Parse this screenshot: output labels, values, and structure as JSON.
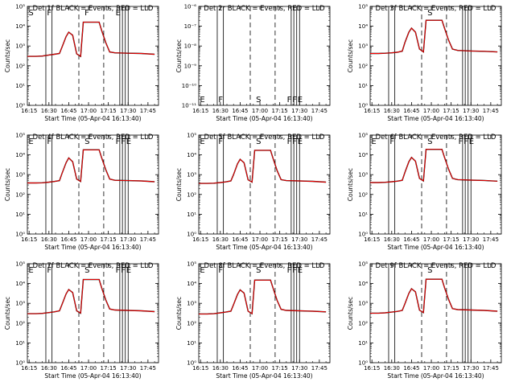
{
  "colors": {
    "events": "#000000",
    "lld": "#ff0000",
    "background": "#ffffff"
  },
  "chart_data": [
    {
      "type": "line",
      "title": "Det 1f BLACK = Events, RED = LLD",
      "xlabel": "Start Time (05-Apr-04 16:13:40)",
      "ylabel": "Counts/sec",
      "x_tick_labels": [
        "16:15",
        "16:30",
        "16:45",
        "17:00",
        "17:15",
        "17:30",
        "17:45"
      ],
      "y_tick_labels": [
        "10⁰",
        "10¹",
        "10²",
        "10³",
        "10⁴",
        "10⁵"
      ],
      "yscale": "log",
      "xlim": [
        "16:13:40",
        "17:53:00"
      ],
      "ylim": [
        1,
        100000
      ],
      "marker_labels": [
        "S",
        "F",
        "F",
        "E"
      ],
      "has_curves": true,
      "series": [
        {
          "x": [
            "16:13:40",
            "16:20:00",
            "16:25:00",
            "16:30:00",
            "16:34:00",
            "16:38:00",
            "16:40:00",
            "16:43:00",
            "16:45:00",
            "16:48:00",
            "16:51:00",
            "16:54:00",
            "16:56:00",
            "17:08:00",
            "17:10:00",
            "17:13:00",
            "17:16:00",
            "17:20:00",
            "17:30:00",
            "17:40:00",
            "17:50:00"
          ],
          "values": [
            300,
            300,
            310,
            350,
            380,
            420,
            900,
            3000,
            5000,
            3500,
            400,
            300,
            16000,
            16000,
            6000,
            1500,
            500,
            450,
            430,
            420,
            380
          ]
        }
      ]
    },
    {
      "type": "line",
      "title": "Det 2r BLACK = Events, RED = LLD",
      "xlabel": "Start Time (05-Apr-04 16:13:40)",
      "ylabel": "Counts/sec",
      "x_tick_labels": [
        "16:15",
        "16:30",
        "16:45",
        "17:00",
        "17:15",
        "17:30",
        "17:45"
      ],
      "y_tick_labels": [
        "10⁻¹¹",
        "10⁻¹⁰",
        "10⁻⁹",
        "10⁻⁸",
        "10⁻⁷",
        "10⁻⁶"
      ],
      "yscale": "log",
      "xlim": [
        "16:13:40",
        "17:53:00"
      ],
      "ylim": [
        1e-11,
        1e-06
      ],
      "marker_labels": [
        "E",
        "F",
        "S",
        "F",
        "F",
        "E"
      ],
      "has_curves": false
    },
    {
      "type": "line",
      "title": "Det 3f BLACK = Events, RED = LLD",
      "xlabel": "Start Time (05-Apr-04 16:13:40)",
      "ylabel": "Counts/sec",
      "x_tick_labels": [
        "16:15",
        "16:30",
        "16:45",
        "17:00",
        "17:15",
        "17:30",
        "17:45"
      ],
      "y_tick_labels": [
        "10⁰",
        "10¹",
        "10²",
        "10³",
        "10⁴",
        "10⁵"
      ],
      "yscale": "log",
      "xlim": [
        "16:13:40",
        "17:53:00"
      ],
      "ylim": [
        1,
        100000
      ],
      "marker_labels": [
        "S"
      ],
      "has_curves": true,
      "series": [
        {
          "x": [
            "16:13:40",
            "16:20:00",
            "16:25:00",
            "16:30:00",
            "16:34:00",
            "16:38:00",
            "16:40:00",
            "16:43:00",
            "16:45:00",
            "16:48:00",
            "16:51:00",
            "16:54:00",
            "16:56:00",
            "17:08:00",
            "17:10:00",
            "17:13:00",
            "17:16:00",
            "17:20:00",
            "17:30:00",
            "17:40:00",
            "17:50:00"
          ],
          "values": [
            420,
            420,
            430,
            450,
            480,
            550,
            1500,
            5000,
            8000,
            5000,
            700,
            500,
            20000,
            20000,
            8000,
            2000,
            700,
            600,
            560,
            540,
            500
          ]
        }
      ]
    },
    {
      "type": "line",
      "title": "Det 4f BLACK = Events, RED = LLD",
      "xlabel": "Start Time (05-Apr-04 16:13:40)",
      "ylabel": "Counts/sec",
      "x_tick_labels": [
        "16:15",
        "16:30",
        "16:45",
        "17:00",
        "17:15",
        "17:30",
        "17:45"
      ],
      "y_tick_labels": [
        "10⁰",
        "10¹",
        "10²",
        "10³",
        "10⁴",
        "10⁵"
      ],
      "yscale": "log",
      "xlim": [
        "16:13:40",
        "17:53:00"
      ],
      "ylim": [
        1,
        100000
      ],
      "marker_labels": [
        "E",
        "F",
        "S",
        "F",
        "F",
        "E"
      ],
      "has_curves": true,
      "series": [
        {
          "x": [
            "16:13:40",
            "16:20:00",
            "16:25:00",
            "16:30:00",
            "16:34:00",
            "16:38:00",
            "16:40:00",
            "16:43:00",
            "16:45:00",
            "16:48:00",
            "16:51:00",
            "16:54:00",
            "16:56:00",
            "17:08:00",
            "17:10:00",
            "17:13:00",
            "17:16:00",
            "17:20:00",
            "17:30:00",
            "17:40:00",
            "17:50:00"
          ],
          "values": [
            380,
            380,
            390,
            420,
            450,
            500,
            1200,
            4000,
            7000,
            4500,
            600,
            450,
            18000,
            18000,
            7000,
            1800,
            600,
            520,
            500,
            480,
            440
          ]
        }
      ]
    },
    {
      "type": "line",
      "title": "Det 5f BLACK = Events, RED = LLD",
      "xlabel": "Start Time (05-Apr-04 16:13:40)",
      "ylabel": "Counts/sec",
      "x_tick_labels": [
        "16:15",
        "16:30",
        "16:45",
        "17:00",
        "17:15",
        "17:30",
        "17:45"
      ],
      "y_tick_labels": [
        "10⁰",
        "10¹",
        "10²",
        "10³",
        "10⁴",
        "10⁵"
      ],
      "yscale": "log",
      "xlim": [
        "16:13:40",
        "17:53:00"
      ],
      "ylim": [
        1,
        100000
      ],
      "marker_labels": [
        "E",
        "F",
        "S",
        "F",
        "F",
        "E"
      ],
      "has_curves": true,
      "series": [
        {
          "x": [
            "16:13:40",
            "16:20:00",
            "16:25:00",
            "16:30:00",
            "16:34:00",
            "16:38:00",
            "16:40:00",
            "16:43:00",
            "16:45:00",
            "16:48:00",
            "16:51:00",
            "16:54:00",
            "16:56:00",
            "17:08:00",
            "17:10:00",
            "17:13:00",
            "17:16:00",
            "17:20:00",
            "17:30:00",
            "17:40:00",
            "17:50:00"
          ],
          "values": [
            360,
            360,
            370,
            400,
            430,
            480,
            1000,
            3500,
            6000,
            4000,
            550,
            420,
            17000,
            17000,
            6500,
            1600,
            560,
            500,
            480,
            460,
            420
          ]
        }
      ]
    },
    {
      "type": "line",
      "title": "Det 6f BLACK = Events, RED = LLD",
      "xlabel": "Start Time (05-Apr-04 16:13:40)",
      "ylabel": "Counts/sec",
      "x_tick_labels": [
        "16:15",
        "16:30",
        "16:45",
        "17:00",
        "17:15",
        "17:30",
        "17:45"
      ],
      "y_tick_labels": [
        "10⁰",
        "10¹",
        "10²",
        "10³",
        "10⁴",
        "10⁵"
      ],
      "yscale": "log",
      "xlim": [
        "16:13:40",
        "17:53:00"
      ],
      "ylim": [
        1,
        100000
      ],
      "marker_labels": [
        "E",
        "F",
        "S",
        "F",
        "F",
        "E"
      ],
      "has_curves": true,
      "series": [
        {
          "x": [
            "16:13:40",
            "16:20:00",
            "16:25:00",
            "16:30:00",
            "16:34:00",
            "16:38:00",
            "16:40:00",
            "16:43:00",
            "16:45:00",
            "16:48:00",
            "16:51:00",
            "16:54:00",
            "16:56:00",
            "17:08:00",
            "17:10:00",
            "17:13:00",
            "17:16:00",
            "17:20:00",
            "17:30:00",
            "17:40:00",
            "17:50:00"
          ],
          "values": [
            400,
            400,
            410,
            440,
            470,
            520,
            1300,
            4500,
            7500,
            4800,
            650,
            480,
            19000,
            19000,
            7500,
            1900,
            650,
            560,
            530,
            510,
            470
          ]
        }
      ]
    },
    {
      "type": "line",
      "title": "Det 7f BLACK = Events, RED = LLD",
      "xlabel": "Start Time (05-Apr-04 16:13:40)",
      "ylabel": "Counts/sec",
      "x_tick_labels": [
        "16:15",
        "16:30",
        "16:45",
        "17:00",
        "17:15",
        "17:30",
        "17:45"
      ],
      "y_tick_labels": [
        "10⁰",
        "10¹",
        "10²",
        "10³",
        "10⁴",
        "10⁵"
      ],
      "yscale": "log",
      "xlim": [
        "16:13:40",
        "17:53:00"
      ],
      "ylim": [
        1,
        100000
      ],
      "marker_labels": [
        "E",
        "F",
        "S",
        "F",
        "F",
        "E"
      ],
      "has_curves": true,
      "series": [
        {
          "x": [
            "16:13:40",
            "16:20:00",
            "16:25:00",
            "16:30:00",
            "16:34:00",
            "16:38:00",
            "16:40:00",
            "16:43:00",
            "16:45:00",
            "16:48:00",
            "16:51:00",
            "16:54:00",
            "16:56:00",
            "17:08:00",
            "17:10:00",
            "17:13:00",
            "17:16:00",
            "17:20:00",
            "17:30:00",
            "17:40:00",
            "17:50:00"
          ],
          "values": [
            300,
            300,
            310,
            340,
            370,
            420,
            900,
            3000,
            5000,
            3500,
            420,
            320,
            16000,
            16000,
            6000,
            1500,
            520,
            460,
            440,
            420,
            380
          ]
        }
      ]
    },
    {
      "type": "line",
      "title": "Det 8f BLACK = Events, RED = LLD",
      "xlabel": "Start Time (05-Apr-04 16:13:40)",
      "ylabel": "Counts/sec",
      "x_tick_labels": [
        "16:15",
        "16:30",
        "16:45",
        "17:00",
        "17:15",
        "17:30",
        "17:45"
      ],
      "y_tick_labels": [
        "10⁰",
        "10¹",
        "10²",
        "10³",
        "10⁴",
        "10⁵"
      ],
      "yscale": "log",
      "xlim": [
        "16:13:40",
        "17:53:00"
      ],
      "ylim": [
        1,
        100000
      ],
      "marker_labels": [
        "E",
        "F",
        "S",
        "F",
        "F",
        "E"
      ],
      "has_curves": true,
      "series": [
        {
          "x": [
            "16:13:40",
            "16:20:00",
            "16:25:00",
            "16:30:00",
            "16:34:00",
            "16:38:00",
            "16:40:00",
            "16:43:00",
            "16:45:00",
            "16:48:00",
            "16:51:00",
            "16:54:00",
            "16:56:00",
            "17:08:00",
            "17:10:00",
            "17:13:00",
            "17:16:00",
            "17:20:00",
            "17:30:00",
            "17:40:00",
            "17:50:00"
          ],
          "values": [
            290,
            290,
            300,
            330,
            360,
            400,
            850,
            2800,
            4800,
            3300,
            400,
            300,
            15000,
            15000,
            5800,
            1400,
            500,
            440,
            420,
            400,
            370
          ]
        }
      ]
    },
    {
      "type": "line",
      "title": "Det 9f BLACK = Events, RED = LLD",
      "xlabel": "Start Time (05-Apr-04 16:13:40)",
      "ylabel": "Counts/sec",
      "x_tick_labels": [
        "16:15",
        "16:30",
        "16:45",
        "17:00",
        "17:15",
        "17:30",
        "17:45"
      ],
      "y_tick_labels": [
        "10⁰",
        "10¹",
        "10²",
        "10³",
        "10⁴",
        "10⁵"
      ],
      "yscale": "log",
      "xlim": [
        "16:13:40",
        "17:53:00"
      ],
      "ylim": [
        1,
        100000
      ],
      "marker_labels": [
        "S"
      ],
      "has_curves": true,
      "series": [
        {
          "x": [
            "16:13:40",
            "16:20:00",
            "16:25:00",
            "16:30:00",
            "16:34:00",
            "16:38:00",
            "16:40:00",
            "16:43:00",
            "16:45:00",
            "16:48:00",
            "16:51:00",
            "16:54:00",
            "16:56:00",
            "17:08:00",
            "17:10:00",
            "17:13:00",
            "17:16:00",
            "17:20:00",
            "17:30:00",
            "17:40:00",
            "17:50:00"
          ],
          "values": [
            320,
            320,
            330,
            360,
            390,
            440,
            950,
            3200,
            5500,
            3800,
            450,
            340,
            16500,
            16500,
            6200,
            1600,
            540,
            480,
            460,
            440,
            400
          ]
        }
      ]
    }
  ]
}
